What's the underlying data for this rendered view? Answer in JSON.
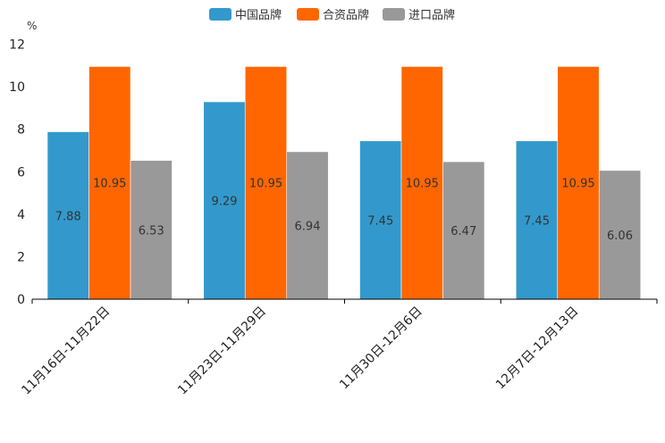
{
  "chart_data": {
    "type": "bar",
    "title": "",
    "ylabel": "%",
    "xlabel": "",
    "ylim": [
      0,
      12
    ],
    "yticks": [
      0,
      2,
      4,
      6,
      8,
      10,
      12
    ],
    "categories": [
      "11月16日-11月22日",
      "11月23日-11月29日",
      "11月30日-12月6日",
      "12月7日-12月13日"
    ],
    "series": [
      {
        "name": "中国品牌",
        "color": "#3399cc",
        "values": [
          7.88,
          9.29,
          7.45,
          7.45
        ]
      },
      {
        "name": "合资品牌",
        "color": "#ff6600",
        "values": [
          10.95,
          10.95,
          10.95,
          10.95
        ]
      },
      {
        "name": "进口品牌",
        "color": "#999999",
        "values": [
          6.53,
          6.94,
          6.47,
          6.06
        ]
      }
    ],
    "legend_position": "top-center",
    "grid": false
  }
}
